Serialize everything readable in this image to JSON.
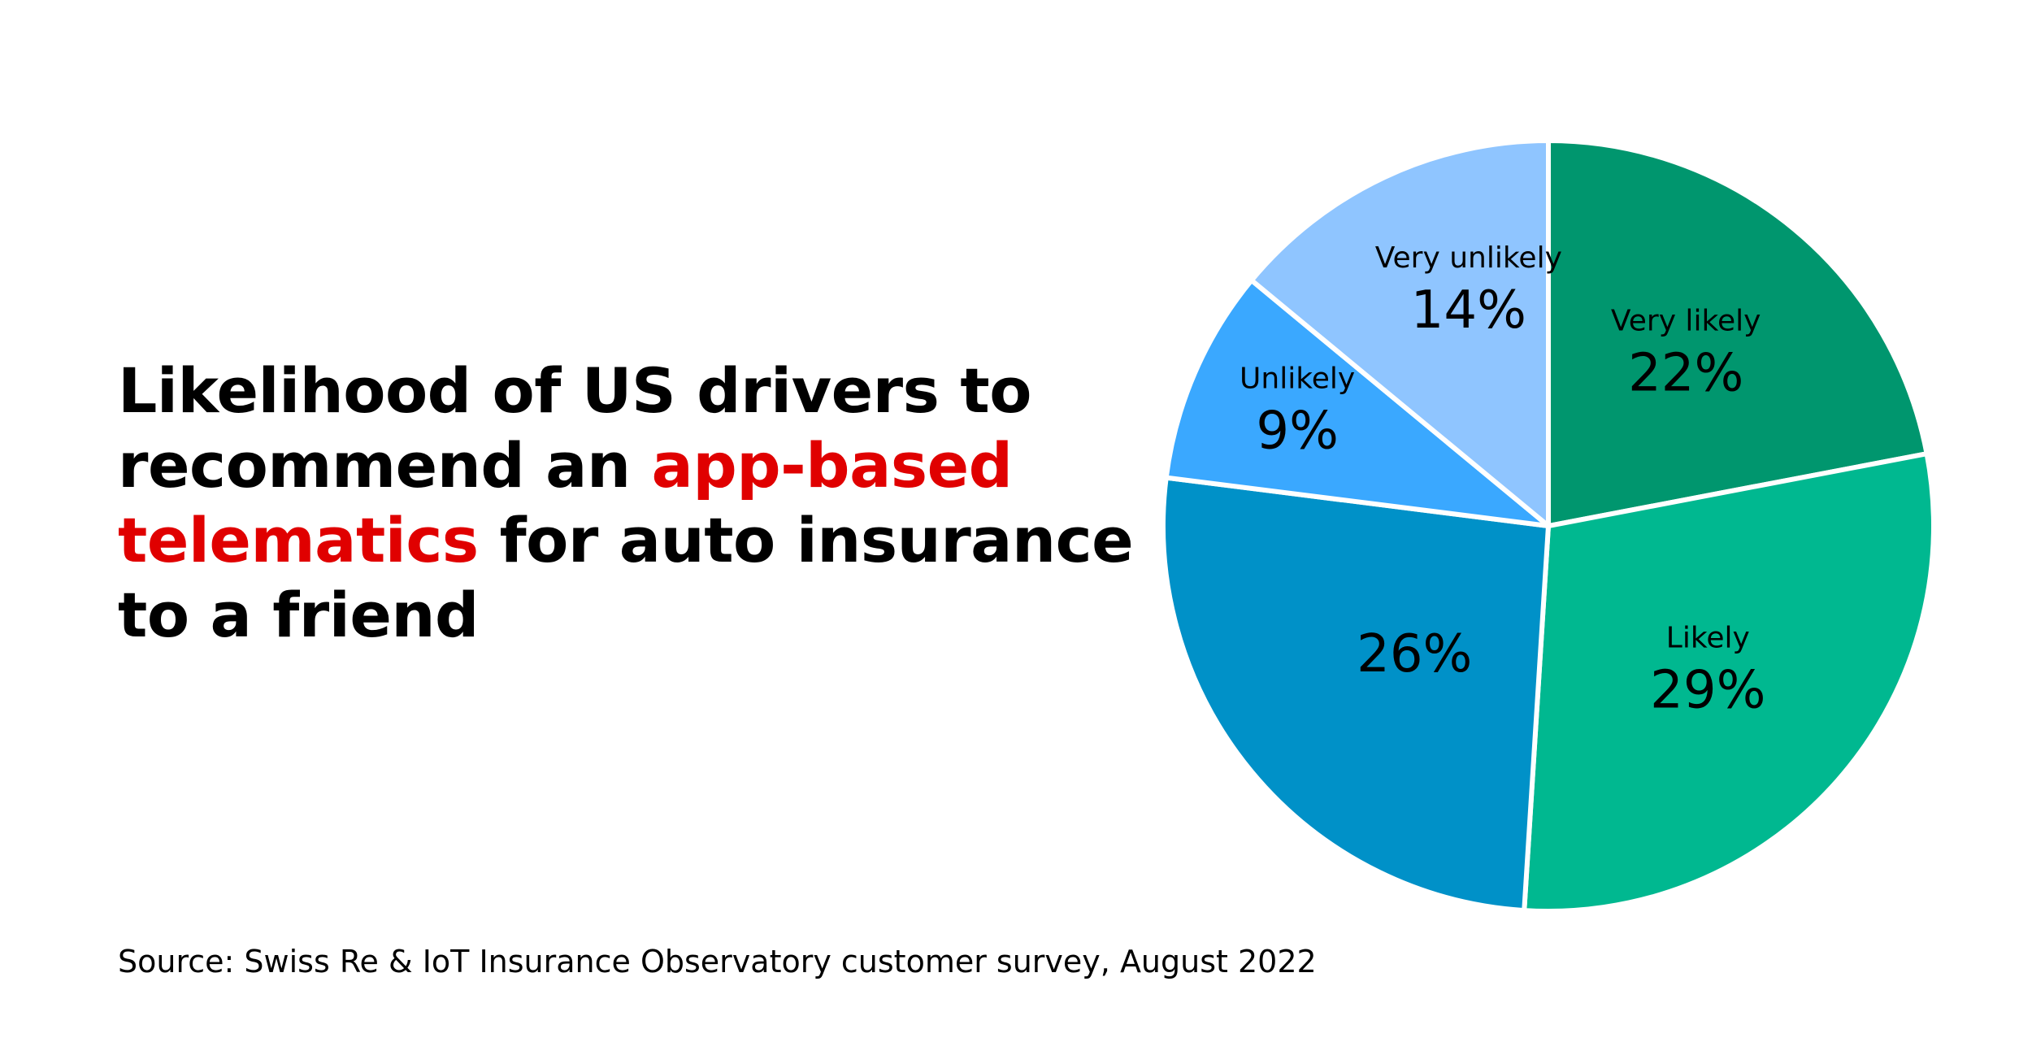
{
  "title": {
    "part1": "Likelihood of US drivers to recommend an ",
    "highlight": "app-based telematics",
    "part2": " for auto insurance to a friend",
    "highlight_color": "#e00000"
  },
  "source": "Source: Swiss Re & IoT Insurance Observatory customer survey, August 2022",
  "chart_data": {
    "type": "pie",
    "title": "Likelihood of US drivers to recommend an app-based telematics for auto insurance to a friend",
    "start": "12 o'clock",
    "direction": "clockwise",
    "categories": [
      "Very likely",
      "Likely",
      "",
      "Unlikely",
      "Very unlikely"
    ],
    "values": [
      22,
      29,
      26,
      9,
      14
    ],
    "value_labels": [
      "22%",
      "29%",
      "26%",
      "9%",
      "14%"
    ],
    "colors": [
      "#00966e",
      "#00b890",
      "#0091c8",
      "#3aa8ff",
      "#8fc5ff"
    ],
    "separator_color": "#ffffff"
  }
}
